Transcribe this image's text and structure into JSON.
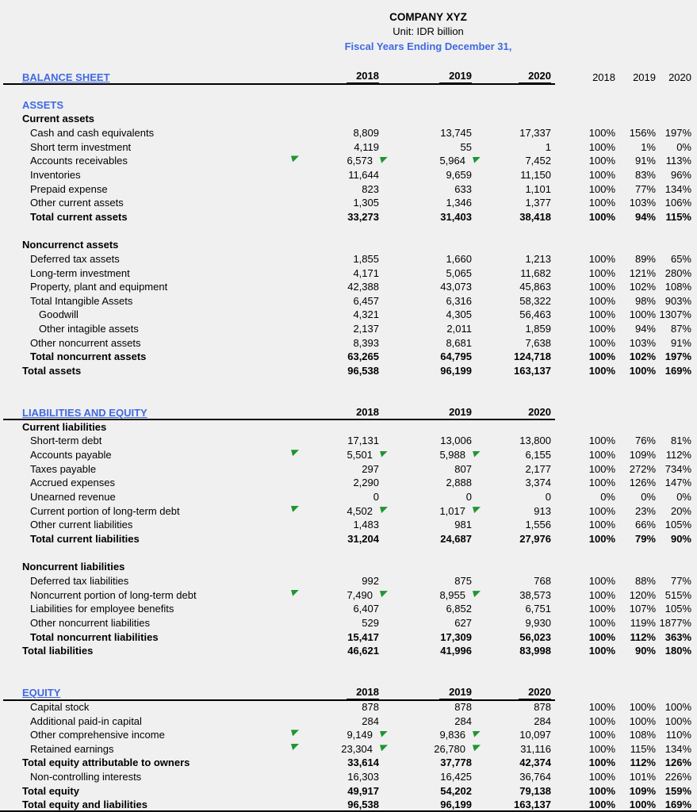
{
  "header": {
    "company": "COMPANY XYZ",
    "unit": "Unit: IDR billion",
    "subtitle": "Fiscal Years Ending December 31,"
  },
  "colors": {
    "background": "#f0f0f0",
    "accent_blue": "#4169e1",
    "flag_green": "#1e9633",
    "rule_black": "#000000"
  },
  "table": {
    "rows": [
      {
        "type": "header",
        "label": "BALANCE SHEET",
        "years": [
          "2018",
          "2019",
          "2020"
        ],
        "pcts": [
          "2018",
          "2019",
          "2020"
        ]
      },
      {
        "type": "blank"
      },
      {
        "type": "section",
        "label": "ASSETS"
      },
      {
        "type": "group",
        "label": "Current assets"
      },
      {
        "type": "item",
        "indent": 1,
        "label": "Cash and cash equivalents",
        "values": [
          "8,809",
          "13,745",
          "17,337"
        ],
        "pcts": [
          "100%",
          "156%",
          "197%"
        ]
      },
      {
        "type": "item",
        "indent": 1,
        "label": "Short term investment",
        "values": [
          "4,119",
          "55",
          "1"
        ],
        "pcts": [
          "100%",
          "1%",
          "0%"
        ]
      },
      {
        "type": "item",
        "indent": 1,
        "label": "Accounts receivables",
        "values": [
          "6,573",
          "5,964",
          "7,452"
        ],
        "pcts": [
          "100%",
          "91%",
          "113%"
        ],
        "flags": true
      },
      {
        "type": "item",
        "indent": 1,
        "label": "Inventories",
        "values": [
          "11,644",
          "9,659",
          "11,150"
        ],
        "pcts": [
          "100%",
          "83%",
          "96%"
        ]
      },
      {
        "type": "item",
        "indent": 1,
        "label": "Prepaid expense",
        "values": [
          "823",
          "633",
          "1,101"
        ],
        "pcts": [
          "100%",
          "77%",
          "134%"
        ]
      },
      {
        "type": "item",
        "indent": 1,
        "label": "Other current assets",
        "values": [
          "1,305",
          "1,346",
          "1,377"
        ],
        "pcts": [
          "100%",
          "103%",
          "106%"
        ]
      },
      {
        "type": "total",
        "indent": 1,
        "label": "Total current assets",
        "values": [
          "33,273",
          "31,403",
          "38,418"
        ],
        "pcts": [
          "100%",
          "94%",
          "115%"
        ]
      },
      {
        "type": "blank"
      },
      {
        "type": "group",
        "label": "Noncurrenct assets"
      },
      {
        "type": "item",
        "indent": 1,
        "label": "Deferred tax assets",
        "values": [
          "1,855",
          "1,660",
          "1,213"
        ],
        "pcts": [
          "100%",
          "89%",
          "65%"
        ]
      },
      {
        "type": "item",
        "indent": 1,
        "label": "Long-term investment",
        "values": [
          "4,171",
          "5,065",
          "11,682"
        ],
        "pcts": [
          "100%",
          "121%",
          "280%"
        ]
      },
      {
        "type": "item",
        "indent": 1,
        "label": "Property, plant and equipment",
        "values": [
          "42,388",
          "43,073",
          "45,863"
        ],
        "pcts": [
          "100%",
          "102%",
          "108%"
        ]
      },
      {
        "type": "item",
        "indent": 1,
        "label": "Total Intangible Assets",
        "values": [
          "6,457",
          "6,316",
          "58,322"
        ],
        "pcts": [
          "100%",
          "98%",
          "903%"
        ]
      },
      {
        "type": "item",
        "indent": 2,
        "label": "Goodwill",
        "values": [
          "4,321",
          "4,305",
          "56,463"
        ],
        "pcts": [
          "100%",
          "100%",
          "1307%"
        ]
      },
      {
        "type": "item",
        "indent": 2,
        "label": "Other intagible assets",
        "values": [
          "2,137",
          "2,011",
          "1,859"
        ],
        "pcts": [
          "100%",
          "94%",
          "87%"
        ]
      },
      {
        "type": "item",
        "indent": 1,
        "label": "Other noncurrent assets",
        "values": [
          "8,393",
          "8,681",
          "7,638"
        ],
        "pcts": [
          "100%",
          "103%",
          "91%"
        ]
      },
      {
        "type": "total",
        "indent": 1,
        "label": "Total noncurrent assets",
        "values": [
          "63,265",
          "64,795",
          "124,718"
        ],
        "pcts": [
          "100%",
          "102%",
          "197%"
        ]
      },
      {
        "type": "total",
        "indent": 0,
        "label": "Total assets",
        "values": [
          "96,538",
          "96,199",
          "163,137"
        ],
        "pcts": [
          "100%",
          "100%",
          "169%"
        ]
      },
      {
        "type": "blank"
      },
      {
        "type": "blank"
      },
      {
        "type": "header",
        "label": "LIABILITIES AND EQUITY",
        "years": [
          "2018",
          "2019",
          "2020"
        ]
      },
      {
        "type": "group",
        "label": "Current liabilities"
      },
      {
        "type": "item",
        "indent": 1,
        "label": "Short-term debt",
        "values": [
          "17,131",
          "13,006",
          "13,800"
        ],
        "pcts": [
          "100%",
          "76%",
          "81%"
        ]
      },
      {
        "type": "item",
        "indent": 1,
        "label": "Accounts payable",
        "values": [
          "5,501",
          "5,988",
          "6,155"
        ],
        "pcts": [
          "100%",
          "109%",
          "112%"
        ],
        "flags": true
      },
      {
        "type": "item",
        "indent": 1,
        "label": "Taxes payable",
        "values": [
          "297",
          "807",
          "2,177"
        ],
        "pcts": [
          "100%",
          "272%",
          "734%"
        ]
      },
      {
        "type": "item",
        "indent": 1,
        "label": "Accrued expenses",
        "values": [
          "2,290",
          "2,888",
          "3,374"
        ],
        "pcts": [
          "100%",
          "126%",
          "147%"
        ]
      },
      {
        "type": "item",
        "indent": 1,
        "label": "Unearned revenue",
        "values": [
          "0",
          "0",
          "0"
        ],
        "pcts": [
          "0%",
          "0%",
          "0%"
        ]
      },
      {
        "type": "item",
        "indent": 1,
        "label": "Current portion of long-term debt",
        "values": [
          "4,502",
          "1,017",
          "913"
        ],
        "pcts": [
          "100%",
          "23%",
          "20%"
        ],
        "flags": true
      },
      {
        "type": "item",
        "indent": 1,
        "label": "Other current liabilities",
        "values": [
          "1,483",
          "981",
          "1,556"
        ],
        "pcts": [
          "100%",
          "66%",
          "105%"
        ]
      },
      {
        "type": "total",
        "indent": 1,
        "label": "Total current liabilities",
        "values": [
          "31,204",
          "24,687",
          "27,976"
        ],
        "pcts": [
          "100%",
          "79%",
          "90%"
        ]
      },
      {
        "type": "blank"
      },
      {
        "type": "group",
        "label": "Noncurrent liabilities"
      },
      {
        "type": "item",
        "indent": 1,
        "label": "Deferred tax liabilities",
        "values": [
          "992",
          "875",
          "768"
        ],
        "pcts": [
          "100%",
          "88%",
          "77%"
        ]
      },
      {
        "type": "item",
        "indent": 1,
        "label": "Noncurrent portion of long-term debt",
        "values": [
          "7,490",
          "8,955",
          "38,573"
        ],
        "pcts": [
          "100%",
          "120%",
          "515%"
        ],
        "flags": true
      },
      {
        "type": "item",
        "indent": 1,
        "label": "Liabilities for employee benefits",
        "values": [
          "6,407",
          "6,852",
          "6,751"
        ],
        "pcts": [
          "100%",
          "107%",
          "105%"
        ]
      },
      {
        "type": "item",
        "indent": 1,
        "label": "Other noncurrent liabilities",
        "values": [
          "529",
          "627",
          "9,930"
        ],
        "pcts": [
          "100%",
          "119%",
          "1877%"
        ]
      },
      {
        "type": "total",
        "indent": 1,
        "label": "Total noncurrent liabilities",
        "values": [
          "15,417",
          "17,309",
          "56,023"
        ],
        "pcts": [
          "100%",
          "112%",
          "363%"
        ]
      },
      {
        "type": "total",
        "indent": 0,
        "label": "Total liabilities",
        "values": [
          "46,621",
          "41,996",
          "83,998"
        ],
        "pcts": [
          "100%",
          "90%",
          "180%"
        ]
      },
      {
        "type": "blank"
      },
      {
        "type": "blank"
      },
      {
        "type": "header",
        "label": "EQUITY",
        "years": [
          "2018",
          "2019",
          "2020"
        ]
      },
      {
        "type": "item",
        "indent": 1,
        "label": "Capital stock",
        "values": [
          "878",
          "878",
          "878"
        ],
        "pcts": [
          "100%",
          "100%",
          "100%"
        ]
      },
      {
        "type": "item",
        "indent": 1,
        "label": "Additional paid-in capital",
        "values": [
          "284",
          "284",
          "284"
        ],
        "pcts": [
          "100%",
          "100%",
          "100%"
        ]
      },
      {
        "type": "item",
        "indent": 1,
        "label": "Other comprehensive income",
        "values": [
          "9,149",
          "9,836",
          "10,097"
        ],
        "pcts": [
          "100%",
          "108%",
          "110%"
        ],
        "flags": true
      },
      {
        "type": "item",
        "indent": 1,
        "label": "Retained earnings",
        "values": [
          "23,304",
          "26,780",
          "31,116"
        ],
        "pcts": [
          "100%",
          "115%",
          "134%"
        ],
        "flags": true
      },
      {
        "type": "total",
        "indent": 0,
        "label": "Total equity attributable to owners",
        "values": [
          "33,614",
          "37,778",
          "42,374"
        ],
        "pcts": [
          "100%",
          "112%",
          "126%"
        ]
      },
      {
        "type": "item",
        "indent": 1,
        "label": "Non-controlling interests",
        "values": [
          "16,303",
          "16,425",
          "36,764"
        ],
        "pcts": [
          "100%",
          "101%",
          "226%"
        ]
      },
      {
        "type": "total",
        "indent": 0,
        "label": "Total equity",
        "values": [
          "49,917",
          "54,202",
          "79,138"
        ],
        "pcts": [
          "100%",
          "109%",
          "159%"
        ]
      },
      {
        "type": "total",
        "indent": 0,
        "label": "Total equity and liabilities",
        "values": [
          "96,538",
          "96,199",
          "163,137"
        ],
        "pcts": [
          "100%",
          "100%",
          "169%"
        ]
      }
    ]
  }
}
